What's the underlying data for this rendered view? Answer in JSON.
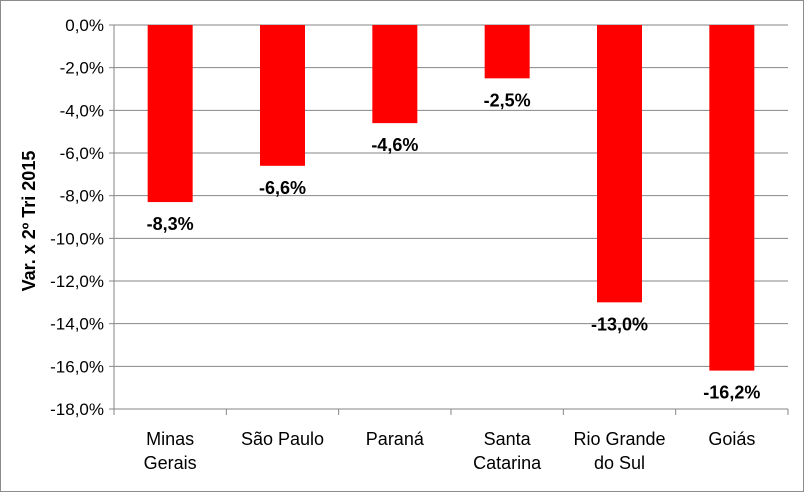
{
  "chart_data": {
    "type": "bar",
    "title": "",
    "xlabel": "",
    "ylabel": "Var. x 2º Tri 2015",
    "categories": [
      [
        "Minas",
        "Gerais"
      ],
      [
        "São Paulo"
      ],
      [
        "Paraná"
      ],
      [
        "Santa",
        "Catarina"
      ],
      [
        "Rio Grande",
        "do Sul"
      ],
      [
        "Goiás"
      ]
    ],
    "values": [
      -8.3,
      -6.6,
      -4.6,
      -2.5,
      -13.0,
      -16.2
    ],
    "value_labels": [
      "-8,3%",
      "-6,6%",
      "-4,6%",
      "-2,5%",
      "-13,0%",
      "-16,2%"
    ],
    "ylim": [
      -18,
      0
    ],
    "ytick_values": [
      0,
      -2,
      -4,
      -6,
      -8,
      -10,
      -12,
      -14,
      -16,
      -18
    ],
    "ytick_labels": [
      "0,0%",
      "-2,0%",
      "-4,0%",
      "-6,0%",
      "-8,0%",
      "-10,0%",
      "-12,0%",
      "-14,0%",
      "-16,0%",
      "-18,0%"
    ],
    "grid": true,
    "legend": "none",
    "colors": {
      "bar": "#ff0000",
      "grid": "#868686",
      "axis": "#868686",
      "text": "#000000"
    }
  }
}
